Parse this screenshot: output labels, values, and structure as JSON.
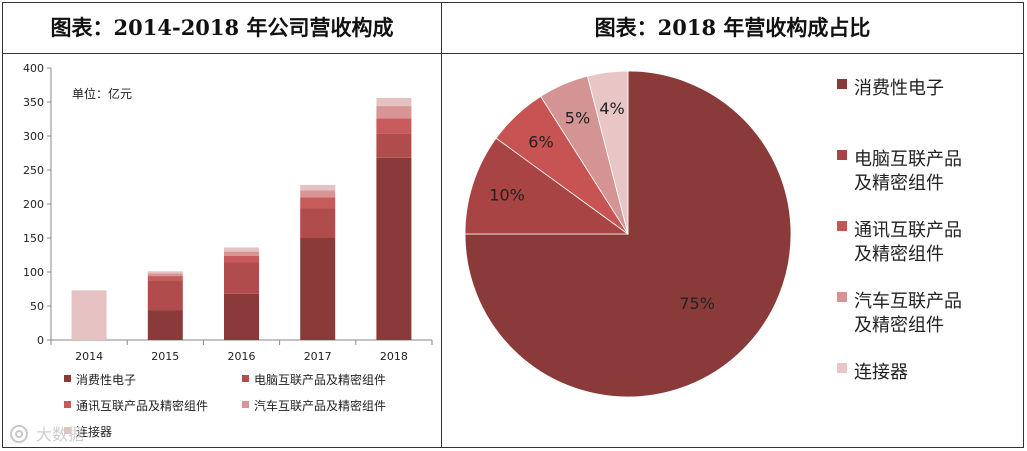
{
  "titles": {
    "left": "图表：2014-2018 年公司营收构成",
    "right": "图表：2018 年营收构成占比"
  },
  "watermark": "大数据",
  "chart_data": [
    {
      "type": "bar",
      "stacked": true,
      "title": "图表：2014-2018 年公司营收构成",
      "unit_label": "单位：亿元",
      "categories": [
        "2014",
        "2015",
        "2016",
        "2017",
        "2018"
      ],
      "ylim": [
        0,
        400
      ],
      "yticks": [
        0,
        50,
        100,
        150,
        200,
        250,
        300,
        350,
        400
      ],
      "legend_position": "bottom",
      "series": [
        {
          "name": "消费性电子",
          "color": "#8b3a3a",
          "values": [
            0,
            44,
            68,
            150,
            268
          ]
        },
        {
          "name": "电脑互联产品及精密组件",
          "color": "#b04c4c",
          "values": [
            0,
            44,
            46,
            44,
            36
          ]
        },
        {
          "name": "通讯互联产品及精密组件",
          "color": "#c75b5b",
          "values": [
            0,
            6,
            10,
            16,
            22
          ]
        },
        {
          "name": "汽车互联产品及精密组件",
          "color": "#d99595",
          "values": [
            0,
            4,
            6,
            10,
            18
          ]
        },
        {
          "name": "连接器",
          "color": "#e6c1c1",
          "values": [
            73,
            3,
            6,
            8,
            12
          ]
        }
      ]
    },
    {
      "type": "pie",
      "title": "图表：2018 年营收构成占比",
      "legend_position": "right",
      "slices": [
        {
          "name": "消费性电子",
          "value": 75,
          "label": "75%",
          "color": "#8b3a3a"
        },
        {
          "name": "电脑互联产品及精密组件",
          "value": 10,
          "label": "10%",
          "color": "#a84444"
        },
        {
          "name": "通讯互联产品及精密组件",
          "value": 6,
          "label": "6%",
          "color": "#c75353"
        },
        {
          "name": "汽车互联产品及精密组件",
          "value": 5,
          "label": "5%",
          "color": "#d49494"
        },
        {
          "name": "连接器",
          "value": 4,
          "label": "4%",
          "color": "#e8c6c6"
        }
      ]
    }
  ]
}
